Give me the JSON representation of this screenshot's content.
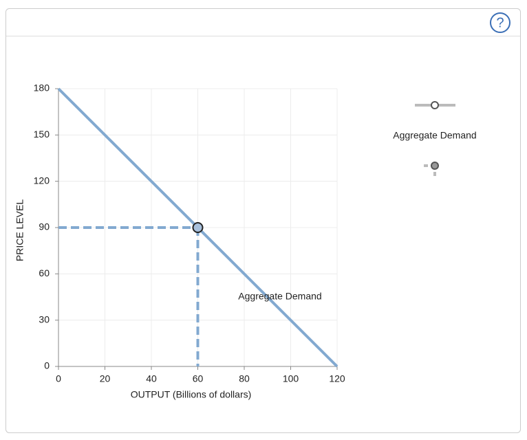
{
  "toolbar": {
    "help": "?"
  },
  "chart_data": {
    "type": "line",
    "x_label": "OUTPUT (Billions of dollars)",
    "y_label": "PRICE LEVEL",
    "xlim": [
      0,
      120
    ],
    "ylim": [
      0,
      180
    ],
    "xticks": [
      0,
      20,
      40,
      60,
      80,
      100,
      120
    ],
    "yticks": [
      0,
      30,
      60,
      90,
      120,
      150,
      180
    ],
    "grid": true,
    "series": [
      {
        "name": "Aggregate Demand",
        "color": "#82a9d0",
        "x": [
          0,
          120
        ],
        "values": [
          180,
          0
        ]
      }
    ],
    "point": {
      "x": 60,
      "y": 90
    },
    "annotation": "Aggregate Demand"
  }
}
